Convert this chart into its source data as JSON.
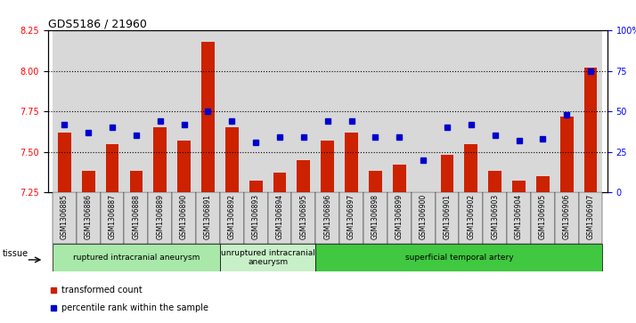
{
  "title": "GDS5186 / 21960",
  "samples": [
    "GSM1306885",
    "GSM1306886",
    "GSM1306887",
    "GSM1306888",
    "GSM1306889",
    "GSM1306890",
    "GSM1306891",
    "GSM1306892",
    "GSM1306893",
    "GSM1306894",
    "GSM1306895",
    "GSM1306896",
    "GSM1306897",
    "GSM1306898",
    "GSM1306899",
    "GSM1306900",
    "GSM1306901",
    "GSM1306902",
    "GSM1306903",
    "GSM1306904",
    "GSM1306905",
    "GSM1306906",
    "GSM1306907"
  ],
  "transformed_count": [
    7.62,
    7.38,
    7.55,
    7.38,
    7.65,
    7.57,
    8.18,
    7.65,
    7.32,
    7.37,
    7.45,
    7.57,
    7.62,
    7.38,
    7.42,
    7.24,
    7.48,
    7.55,
    7.38,
    7.32,
    7.35,
    7.72,
    8.02
  ],
  "percentile_rank": [
    42,
    37,
    40,
    35,
    44,
    42,
    50,
    44,
    31,
    34,
    34,
    44,
    44,
    34,
    34,
    20,
    40,
    42,
    35,
    32,
    33,
    48,
    75
  ],
  "ylim_left": [
    7.25,
    8.25
  ],
  "ylim_right": [
    0,
    100
  ],
  "yticks_left": [
    7.25,
    7.5,
    7.75,
    8.0,
    8.25
  ],
  "yticks_right": [
    0,
    25,
    50,
    75,
    100
  ],
  "ytick_labels_right": [
    "0",
    "25",
    "50",
    "75",
    "100%"
  ],
  "groups": [
    {
      "label": "ruptured intracranial aneurysm",
      "start": 0,
      "end": 7,
      "color": "#a8e8a8"
    },
    {
      "label": "unruptured intracranial\naneurysm",
      "start": 7,
      "end": 11,
      "color": "#c8f0c8"
    },
    {
      "label": "superficial temporal artery",
      "start": 11,
      "end": 23,
      "color": "#40c840"
    }
  ],
  "bar_color": "#cc2200",
  "dot_color": "#0000cc",
  "col_bg_color": "#d8d8d8",
  "plot_bg_color": "#ffffff",
  "legend_items": [
    {
      "label": "transformed count",
      "color": "#cc2200"
    },
    {
      "label": "percentile rank within the sample",
      "color": "#0000cc"
    }
  ]
}
